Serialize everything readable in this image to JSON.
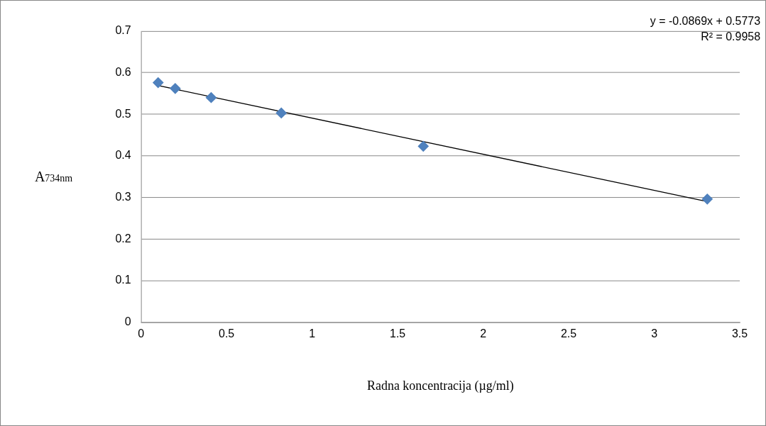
{
  "chart_data": {
    "type": "scatter",
    "xlabel": "Radna koncentracija (µg/ml)",
    "ylabel": "A$_{734nm}$",
    "annotations": [
      "y = -0.0869x + 0.5773",
      "R² = 0.9958"
    ],
    "series": [
      {
        "color": "#4f81bd",
        "x": [
          0.1,
          0.2,
          0.41,
          0.82,
          1.65,
          3.31
        ],
        "values": [
          0.576,
          0.562,
          0.54,
          0.503,
          0.423,
          0.296
        ],
        "marker": "diamond"
      },
      {
        "type": "line",
        "color": "#000000",
        "x": [
          0.1,
          3.31
        ],
        "values": [
          0.569,
          0.29
        ],
        "marker": "none",
        "line_style": "solid"
      }
    ],
    "xlim": [
      0,
      3.5
    ],
    "xticks": [
      0,
      0.5,
      1,
      1.5,
      2,
      2.5,
      3,
      3.5
    ],
    "ylim": [
      0,
      0.7
    ],
    "yticks": [
      0,
      0.1,
      0.2,
      0.3,
      0.4,
      0.5,
      0.6,
      0.7
    ],
    "grid": "y",
    "legend": false
  }
}
